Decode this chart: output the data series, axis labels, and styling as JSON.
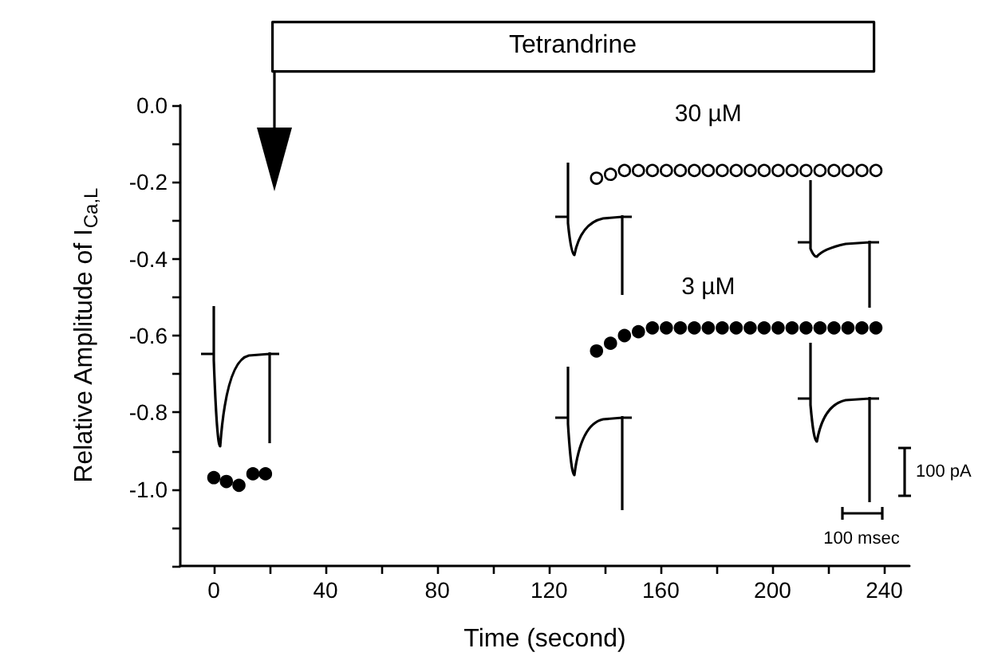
{
  "chart_data": {
    "type": "scatter",
    "xlabel": "Time (second)",
    "ylabel": "Relative Amplitude of I$_{Ca,L}$",
    "series": [
      {
        "name": "3 µM",
        "color": "#000000",
        "x": [
          0,
          4.5,
          9,
          14,
          18.5,
          137,
          142,
          147,
          152,
          157,
          162,
          167,
          172,
          177,
          182,
          187,
          192,
          197,
          202,
          207,
          212,
          217,
          222,
          227,
          232,
          237
        ],
        "values": [
          -0.97,
          -0.98,
          -0.99,
          -0.96,
          -0.96,
          -0.64,
          -0.62,
          -0.6,
          -0.59,
          -0.58,
          -0.58,
          -0.58,
          -0.58,
          -0.58,
          -0.58,
          -0.58,
          -0.58,
          -0.58,
          -0.58,
          -0.58,
          -0.58,
          -0.58,
          -0.58,
          -0.58,
          -0.58,
          -0.58
        ]
      },
      {
        "name": "30 µM",
        "color": "#000000",
        "x": [
          137,
          142,
          147,
          152,
          157,
          162,
          167,
          172,
          177,
          182,
          187,
          192,
          197,
          202,
          207,
          212,
          217,
          222,
          227,
          232,
          237
        ],
        "values": [
          -0.19,
          -0.18,
          -0.17,
          -0.17,
          -0.17,
          -0.17,
          -0.17,
          -0.17,
          -0.17,
          -0.17,
          -0.17,
          -0.17,
          -0.17,
          -0.17,
          -0.17,
          -0.17,
          -0.17,
          -0.17,
          -0.17,
          -0.17,
          -0.17
        ]
      }
    ],
    "marker": "circle",
    "xlim": [
      -12,
      249
    ],
    "xticks": [
      0,
      {
        "value": 20,
        "label": null
      },
      40,
      {
        "value": 60,
        "label": null
      },
      80,
      {
        "value": 100,
        "label": null
      },
      120,
      {
        "value": 140,
        "label": null
      },
      160,
      {
        "value": 180,
        "label": null
      },
      200,
      {
        "value": 220,
        "label": null
      },
      240
    ],
    "ylim": [
      -1.2,
      0
    ],
    "yticks": [
      {
        "value": 0,
        "label": "0.0"
      },
      {
        "value": -0.1,
        "label": null
      },
      {
        "value": -0.2,
        "label": "-0.2"
      },
      {
        "value": -0.3,
        "label": null
      },
      {
        "value": -0.4,
        "label": "-0.4"
      },
      {
        "value": -0.5,
        "label": null
      },
      {
        "value": -0.6,
        "label": "-0.6"
      },
      {
        "value": -0.7,
        "label": null
      },
      {
        "value": -0.8,
        "label": "-0.8"
      },
      {
        "value": -0.9,
        "label": null
      },
      {
        "value": -1.0,
        "label": "-1.0"
      },
      {
        "value": -1.1,
        "label": null
      },
      {
        "value": -1.2,
        "label": null
      }
    ],
    "annotations": [
      "Tetrandrine",
      "100 pA",
      "100 msec"
    ]
  }
}
